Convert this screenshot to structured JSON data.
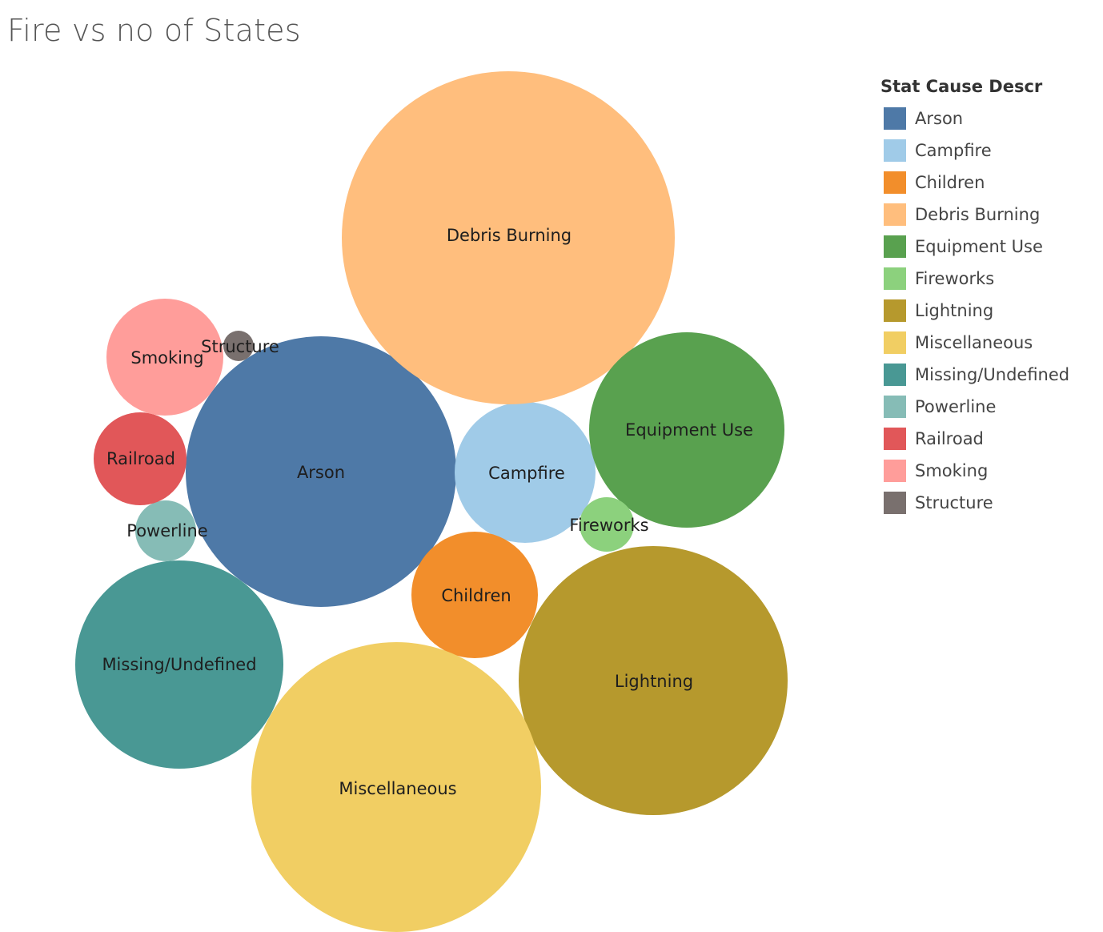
{
  "chart_data": {
    "type": "bubble",
    "title": "Fire vs no of States",
    "legend": {
      "title": "Stat Cause Descr",
      "placement": "top-right"
    },
    "series": [
      {
        "name": "Arson",
        "color": "#4e79a7"
      },
      {
        "name": "Campfire",
        "color": "#a0cbe8"
      },
      {
        "name": "Children",
        "color": "#f28e2b"
      },
      {
        "name": "Debris Burning",
        "color": "#ffbe7d"
      },
      {
        "name": "Equipment Use",
        "color": "#59a14f"
      },
      {
        "name": "Fireworks",
        "color": "#8cd17d"
      },
      {
        "name": "Lightning",
        "color": "#b6992d"
      },
      {
        "name": "Miscellaneous",
        "color": "#f1ce63"
      },
      {
        "name": "Missing/Undefined",
        "color": "#499894"
      },
      {
        "name": "Powerline",
        "color": "#86bcb6"
      },
      {
        "name": "Railroad",
        "color": "#e15759"
      },
      {
        "name": "Smoking",
        "color": "#ff9d9a"
      },
      {
        "name": "Structure",
        "color": "#79706e"
      }
    ]
  }
}
